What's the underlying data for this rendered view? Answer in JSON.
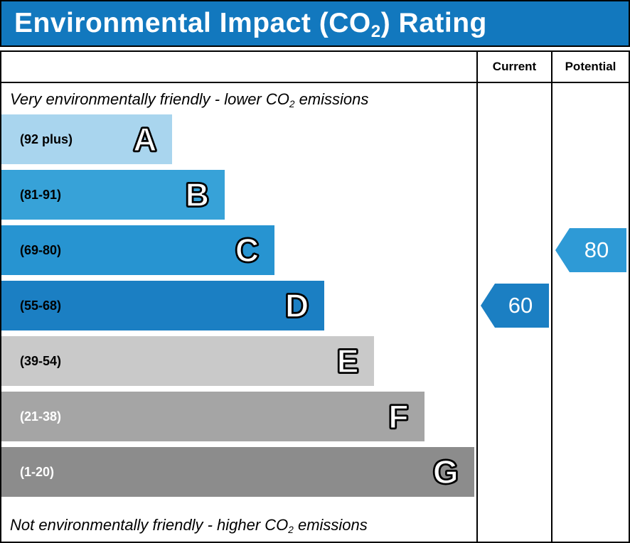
{
  "header": {
    "title_pre": "Environmental Impact (CO",
    "title_sub": "2",
    "title_post": ") Rating",
    "bg_color": "#1278be"
  },
  "columns": {
    "current": "Current",
    "potential": "Potential"
  },
  "chart_data": {
    "type": "bar",
    "title": "Environmental Impact (CO2) Rating",
    "top_note": {
      "pre": "Very environmentally friendly - lower CO",
      "sub": "2",
      "post": " emissions"
    },
    "bottom_note": {
      "pre": "Not environmentally friendly - higher CO",
      "sub": "2",
      "post": " emissions"
    },
    "bands": [
      {
        "letter": "A",
        "range": "(92 plus)",
        "color": "#a9d5ee",
        "width_pct": 36,
        "label_color": "#000000"
      },
      {
        "letter": "B",
        "range": "(81-91)",
        "color": "#37a2d8",
        "width_pct": 47,
        "label_color": "#000000"
      },
      {
        "letter": "C",
        "range": "(69-80)",
        "color": "#2794d1",
        "width_pct": 57.5,
        "label_color": "#000000"
      },
      {
        "letter": "D",
        "range": "(55-68)",
        "color": "#1b7fc3",
        "width_pct": 68,
        "label_color": "#000000"
      },
      {
        "letter": "E",
        "range": "(39-54)",
        "color": "#c9c9c9",
        "width_pct": 78.5,
        "label_color": "#000000"
      },
      {
        "letter": "F",
        "range": "(21-38)",
        "color": "#a5a5a5",
        "width_pct": 89,
        "label_color": "#ffffff"
      },
      {
        "letter": "G",
        "range": "(1-20)",
        "color": "#8c8c8c",
        "width_pct": 99.5,
        "label_color": "#ffffff"
      }
    ],
    "current": {
      "value": 60,
      "band_index": 3,
      "color": "#1b7fc3"
    },
    "potential": {
      "value": 80,
      "band_index": 2,
      "color": "#2e9ad6"
    }
  }
}
